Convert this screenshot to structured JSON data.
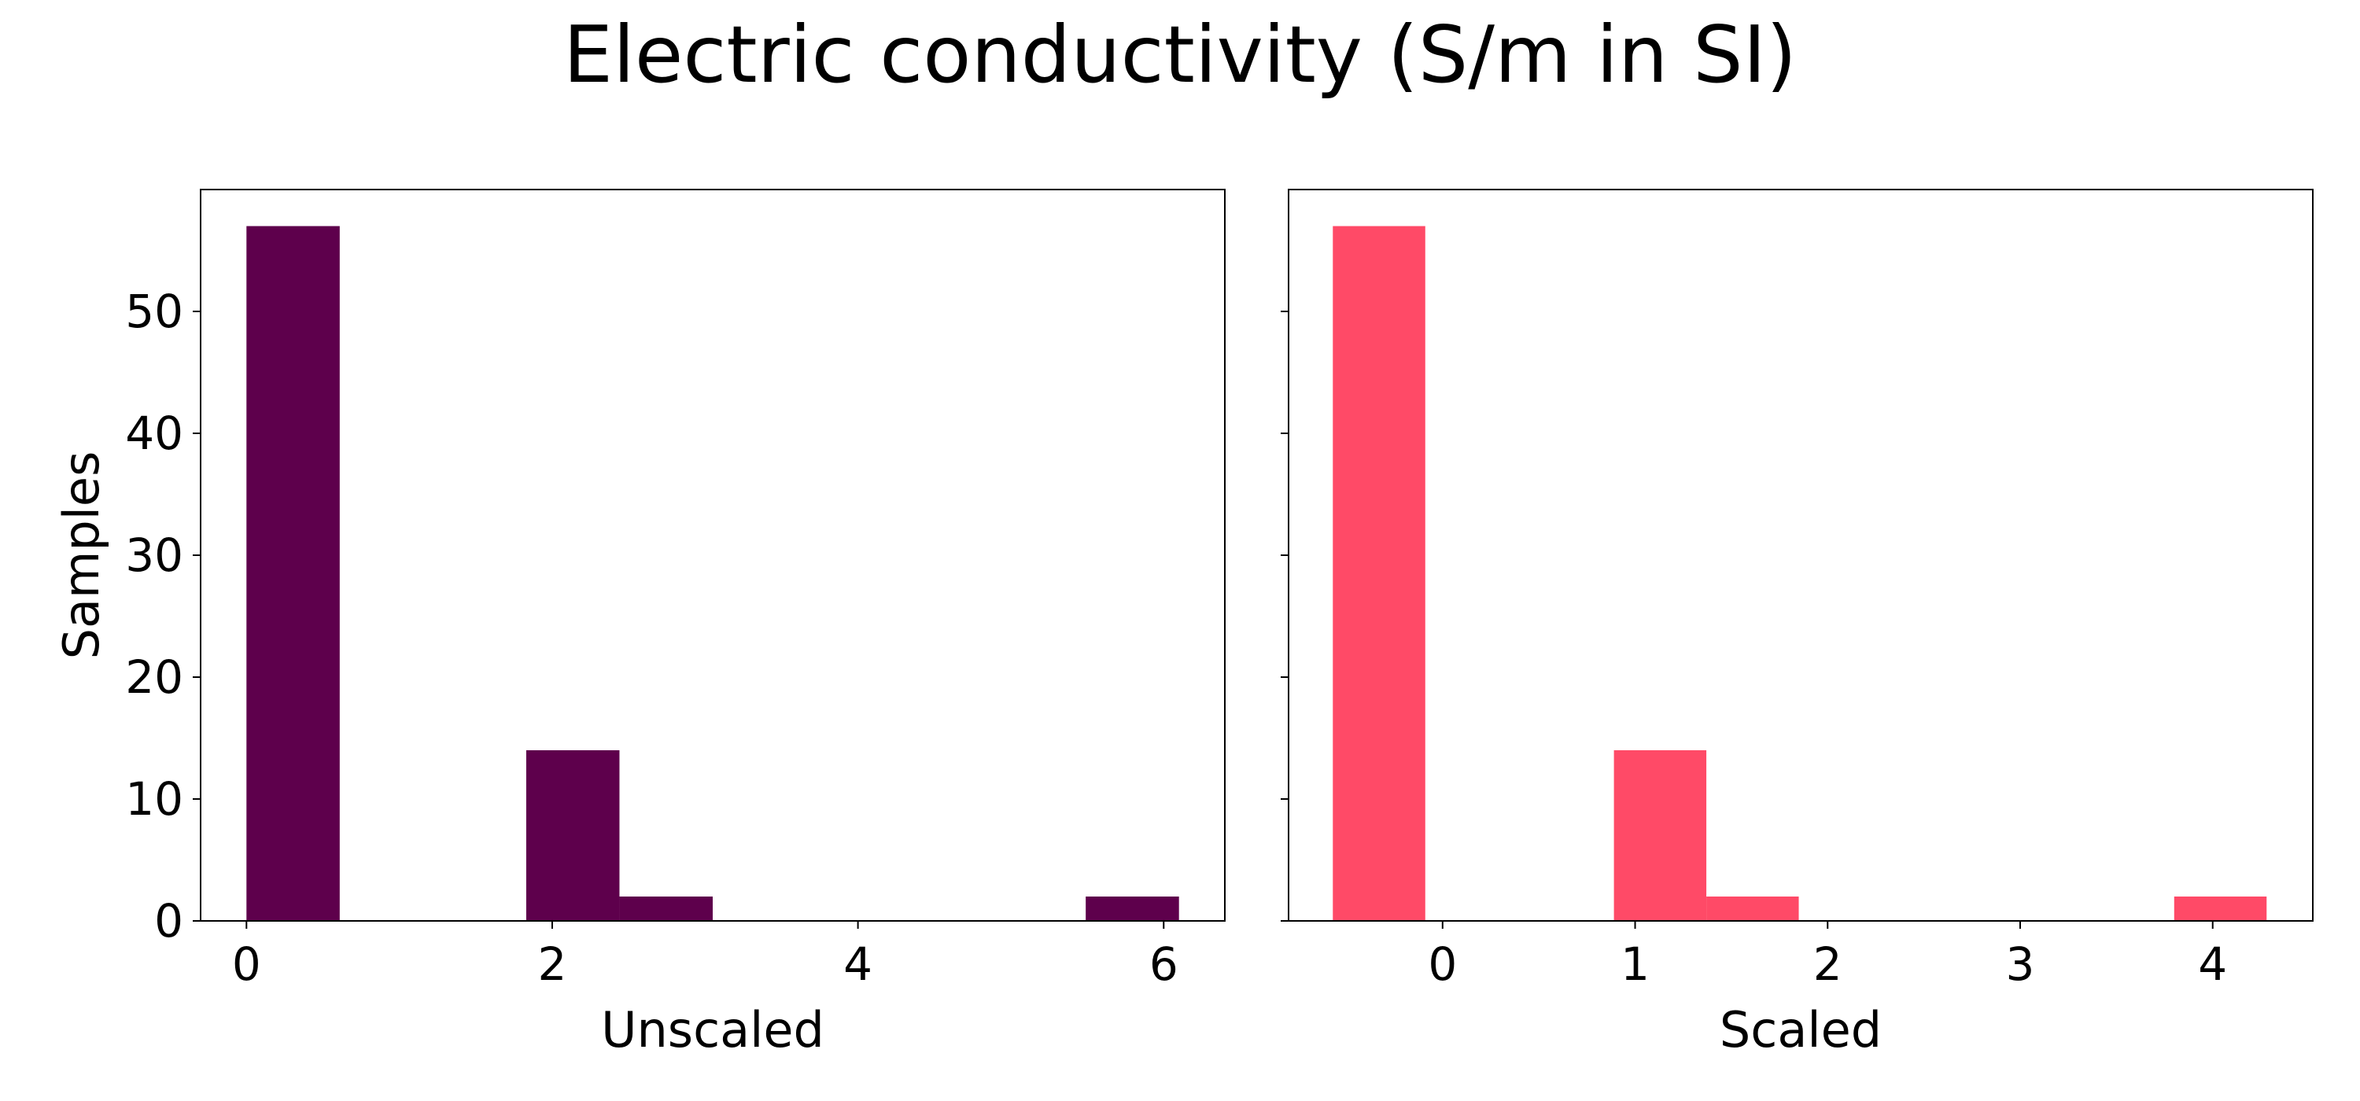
{
  "figure": {
    "title": "Electric conductivity (S/m in SI)"
  },
  "chart_data": [
    {
      "type": "bar",
      "subtype": "histogram",
      "xlabel": "Unscaled",
      "ylabel": "Samples",
      "color": "#5e004c",
      "xlim": [
        -0.3,
        6.4
      ],
      "ylim": [
        0,
        60
      ],
      "xticks": [
        0,
        2,
        4,
        6
      ],
      "yticks": [
        0,
        10,
        20,
        30,
        40,
        50
      ],
      "bins": [
        {
          "x0": 0.0,
          "x1": 0.61,
          "count": 57
        },
        {
          "x0": 0.61,
          "x1": 1.22,
          "count": 0
        },
        {
          "x0": 1.22,
          "x1": 1.83,
          "count": 0
        },
        {
          "x0": 1.83,
          "x1": 2.44,
          "count": 14
        },
        {
          "x0": 2.44,
          "x1": 3.05,
          "count": 2
        },
        {
          "x0": 3.05,
          "x1": 3.66,
          "count": 0
        },
        {
          "x0": 3.66,
          "x1": 4.27,
          "count": 0
        },
        {
          "x0": 4.27,
          "x1": 4.88,
          "count": 0
        },
        {
          "x0": 4.88,
          "x1": 5.49,
          "count": 0
        },
        {
          "x0": 5.49,
          "x1": 6.1,
          "count": 2
        }
      ]
    },
    {
      "type": "bar",
      "subtype": "histogram",
      "xlabel": "Scaled",
      "ylabel": "",
      "color": "#ff4a67",
      "xlim": [
        -0.8,
        4.52
      ],
      "ylim": [
        0,
        60
      ],
      "xticks": [
        0,
        1,
        2,
        3,
        4
      ],
      "yticks": [
        0,
        10,
        20,
        30,
        40,
        50
      ],
      "bins": [
        {
          "x0": -0.57,
          "x1": -0.09,
          "count": 57
        },
        {
          "x0": -0.09,
          "x1": 0.4,
          "count": 0
        },
        {
          "x0": 0.4,
          "x1": 0.89,
          "count": 0
        },
        {
          "x0": 0.89,
          "x1": 1.37,
          "count": 14
        },
        {
          "x0": 1.37,
          "x1": 1.85,
          "count": 2
        },
        {
          "x0": 1.85,
          "x1": 2.34,
          "count": 0
        },
        {
          "x0": 2.34,
          "x1": 2.83,
          "count": 0
        },
        {
          "x0": 2.83,
          "x1": 3.31,
          "count": 0
        },
        {
          "x0": 3.31,
          "x1": 3.8,
          "count": 0
        },
        {
          "x0": 3.8,
          "x1": 4.28,
          "count": 2
        }
      ]
    }
  ]
}
